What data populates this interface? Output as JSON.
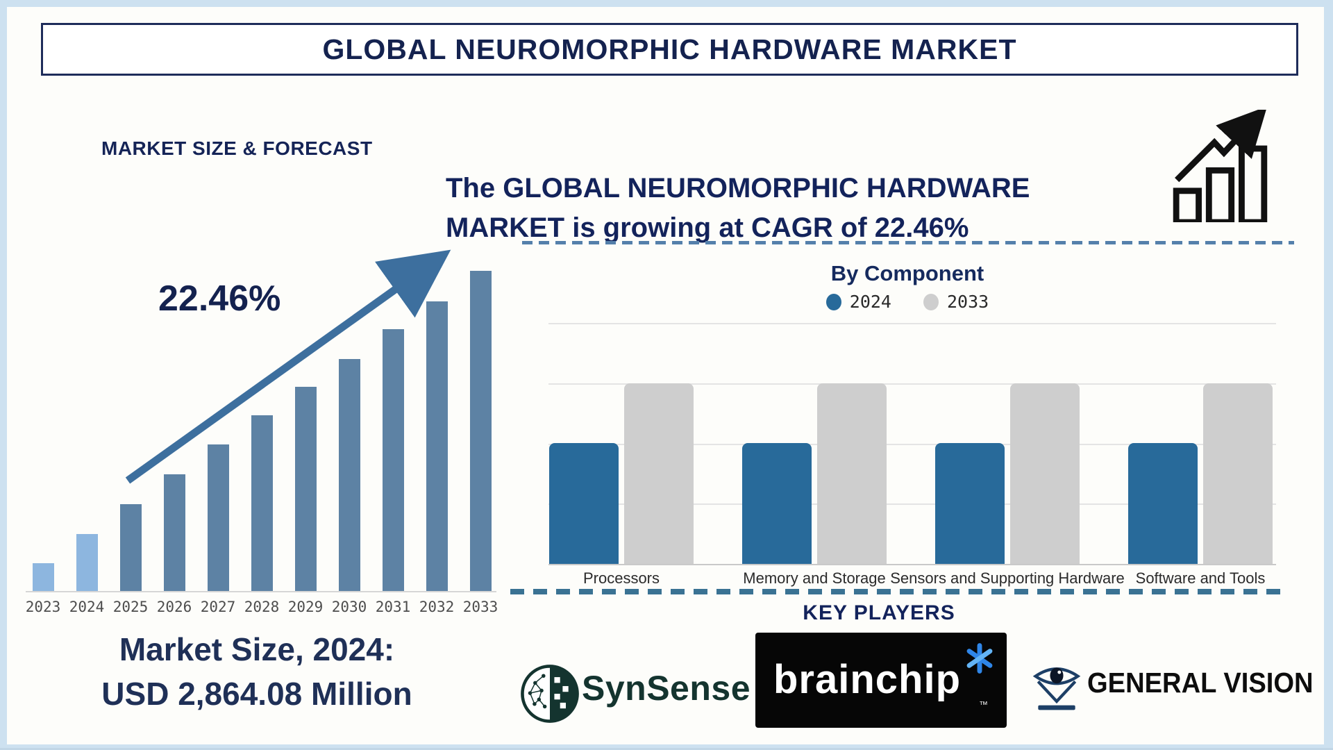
{
  "colors": {
    "navy_text": "#14224f",
    "frame_blue": "#cde1f0",
    "arrow_blue": "#3d6f9e",
    "left_bar_highlight": "#8db6df",
    "left_bar_base": "#5d82a4",
    "right_bar_2024": "#286a9a",
    "right_bar_2033": "#cecece",
    "dash_line": "#3a7293"
  },
  "header": {
    "title": "GLOBAL NEUROMORPHIC HARDWARE MARKET"
  },
  "left_section": {
    "section_title": "MARKET SIZE & FORECAST",
    "cagr_label": "22.46%",
    "market_size_line1": "Market Size, 2024:",
    "market_size_line2": "USD 2,864.08 Million"
  },
  "right_section": {
    "growth_text_line1": "The GLOBAL NEUROMORPHIC HARDWARE",
    "growth_text_line2": "MARKET is growing at CAGR of 22.46%",
    "by_component_title": "By Component",
    "key_players_title": "KEY PLAYERS",
    "players": [
      {
        "name": "SynSense"
      },
      {
        "name": "brainchip",
        "trademark": "™"
      },
      {
        "name": "GENERAL VISION"
      }
    ]
  },
  "chart_data": [
    {
      "id": "market-size-forecast",
      "type": "bar",
      "title": "MARKET SIZE & FORECAST",
      "categories": [
        "2023",
        "2024",
        "2025",
        "2026",
        "2027",
        "2028",
        "2029",
        "2030",
        "2031",
        "2032",
        "2033"
      ],
      "values_relative": [
        8.7,
        17.8,
        27.1,
        36.4,
        45.8,
        54.9,
        63.8,
        72.5,
        81.8,
        90.5,
        100
      ],
      "value_note": "no y-axis shown; bar heights relative, 2033 = 100",
      "known_point": {
        "year": "2024",
        "value_usd_million": 2864.08
      },
      "cagr_percent": 22.46,
      "highlight_years": [
        "2023",
        "2024"
      ],
      "highlight_color": "#8db6df",
      "base_color": "#5d82a4",
      "grid": false,
      "legend_position": "none"
    },
    {
      "id": "by-component",
      "type": "grouped-bar",
      "title": "By Component",
      "categories": [
        "Processors",
        "Memory and Storage",
        "Sensors and Supporting Hardware",
        "Software and Tools"
      ],
      "series": [
        {
          "name": "2024",
          "color": "#286a9a",
          "values_relative": [
            50,
            50,
            50,
            50
          ]
        },
        {
          "name": "2033",
          "color": "#cecece",
          "values_relative": [
            75,
            75,
            75,
            75
          ]
        }
      ],
      "ylim_relative": [
        0,
        100
      ],
      "value_note": "no y-axis labels shown; heights relative to plot area",
      "grid": true,
      "legend_position": "top"
    }
  ]
}
